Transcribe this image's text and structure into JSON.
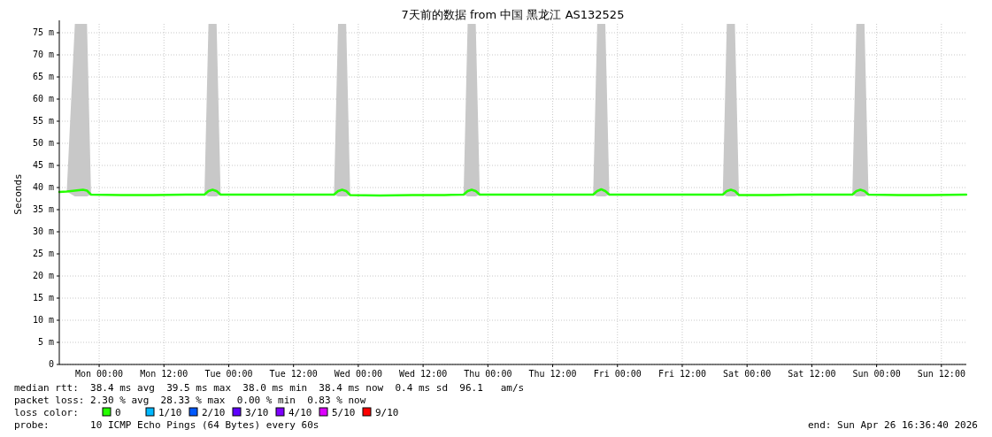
{
  "chart_data": {
    "type": "line",
    "title": "7天前的数据 from 中国 黑龙江 AS132525",
    "ylabel": "Seconds",
    "legend_title": "loss color:",
    "legend": "bottom",
    "grid": true,
    "line_style": "solid",
    "marker": "none",
    "xlim": [
      "2026-04-19T16:37",
      "2026-04-26T16:37"
    ],
    "xticks": [
      {
        "value": "2026-04-20T00:00",
        "label": "Mon 00:00"
      },
      {
        "value": "2026-04-20T12:00",
        "label": "Mon 12:00"
      },
      {
        "value": "2026-04-21T00:00",
        "label": "Tue 00:00"
      },
      {
        "value": "2026-04-21T12:00",
        "label": "Tue 12:00"
      },
      {
        "value": "2026-04-22T00:00",
        "label": "Wed 00:00"
      },
      {
        "value": "2026-04-22T12:00",
        "label": "Wed 12:00"
      },
      {
        "value": "2026-04-23T00:00",
        "label": "Thu 00:00"
      },
      {
        "value": "2026-04-23T12:00",
        "label": "Thu 12:00"
      },
      {
        "value": "2026-04-24T00:00",
        "label": "Fri 00:00"
      },
      {
        "value": "2026-04-24T12:00",
        "label": "Fri 12:00"
      },
      {
        "value": "2026-04-25T00:00",
        "label": "Sat 00:00"
      },
      {
        "value": "2026-04-25T12:00",
        "label": "Sat 12:00"
      },
      {
        "value": "2026-04-26T00:00",
        "label": "Sun 00:00"
      },
      {
        "value": "2026-04-26T12:00",
        "label": "Sun 12:00"
      }
    ],
    "ylim": [
      0,
      77
    ],
    "yticks": [
      0,
      {
        "value": 5,
        "label": "5 m"
      },
      {
        "value": 10,
        "label": "10 m"
      },
      {
        "value": 15,
        "label": "15 m"
      },
      {
        "value": 20,
        "label": "20 m"
      },
      {
        "value": 25,
        "label": "25 m"
      },
      {
        "value": 30,
        "label": "30 m"
      },
      {
        "value": 35,
        "label": "35 m"
      },
      {
        "value": 40,
        "label": "40 m"
      },
      {
        "value": 45,
        "label": "45 m"
      },
      {
        "value": 50,
        "label": "50 m"
      },
      {
        "value": 55,
        "label": "55 m"
      },
      {
        "value": 60,
        "label": "60 m"
      },
      {
        "value": 65,
        "label": "65 m"
      },
      {
        "value": 70,
        "label": "70 m"
      },
      {
        "value": 75,
        "label": "75 m"
      }
    ],
    "series": [
      {
        "name": "0",
        "color": "#26ff00",
        "x": [
          "2026-04-19T16:37",
          "2026-04-19T18:00",
          "2026-04-19T19:30",
          "2026-04-19T21:00",
          "2026-04-19T21:45",
          "2026-04-19T22:30",
          "2026-04-20T04:00",
          "2026-04-20T10:00",
          "2026-04-20T16:00",
          "2026-04-20T19:30",
          "2026-04-20T20:15",
          "2026-04-20T21:00",
          "2026-04-20T21:45",
          "2026-04-20T22:30",
          "2026-04-21T04:00",
          "2026-04-21T10:00",
          "2026-04-21T16:00",
          "2026-04-21T19:30",
          "2026-04-21T20:15",
          "2026-04-21T21:00",
          "2026-04-21T21:45",
          "2026-04-21T22:30",
          "2026-04-22T04:00",
          "2026-04-22T10:00",
          "2026-04-22T16:00",
          "2026-04-22T19:30",
          "2026-04-22T20:15",
          "2026-04-22T21:00",
          "2026-04-22T21:45",
          "2026-04-22T22:30",
          "2026-04-23T04:00",
          "2026-04-23T10:00",
          "2026-04-23T16:00",
          "2026-04-23T19:30",
          "2026-04-23T20:15",
          "2026-04-23T21:00",
          "2026-04-23T21:45",
          "2026-04-23T22:30",
          "2026-04-24T04:00",
          "2026-04-24T10:00",
          "2026-04-24T16:00",
          "2026-04-24T19:30",
          "2026-04-24T20:15",
          "2026-04-24T21:00",
          "2026-04-24T21:45",
          "2026-04-24T22:30",
          "2026-04-25T04:00",
          "2026-04-25T10:00",
          "2026-04-25T16:00",
          "2026-04-25T19:30",
          "2026-04-25T20:15",
          "2026-04-25T21:00",
          "2026-04-25T21:45",
          "2026-04-25T22:30",
          "2026-04-26T04:00",
          "2026-04-26T10:00",
          "2026-04-26T16:36"
        ],
        "values": [
          39.0,
          39.1,
          39.3,
          39.5,
          39.3,
          38.4,
          38.3,
          38.3,
          38.4,
          38.4,
          39.2,
          39.5,
          39.2,
          38.4,
          38.4,
          38.4,
          38.4,
          38.4,
          39.2,
          39.5,
          39.2,
          38.3,
          38.2,
          38.3,
          38.3,
          38.4,
          39.2,
          39.5,
          39.2,
          38.4,
          38.4,
          38.4,
          38.4,
          38.4,
          39.2,
          39.6,
          39.2,
          38.4,
          38.4,
          38.4,
          38.4,
          38.4,
          39.2,
          39.5,
          39.2,
          38.3,
          38.3,
          38.4,
          38.4,
          38.4,
          39.2,
          39.5,
          39.2,
          38.4,
          38.3,
          38.3,
          38.4
        ],
        "lower": [
          39.0,
          39.1,
          38.0,
          38.0,
          38.0,
          38.4,
          38.3,
          38.3,
          38.4,
          38.4,
          38.0,
          38.0,
          38.0,
          38.4,
          38.4,
          38.4,
          38.4,
          38.4,
          38.0,
          38.0,
          38.0,
          38.3,
          38.2,
          38.3,
          38.3,
          38.4,
          38.0,
          38.0,
          38.0,
          38.4,
          38.4,
          38.4,
          38.4,
          38.4,
          38.0,
          38.0,
          38.0,
          38.4,
          38.4,
          38.4,
          38.4,
          38.4,
          38.0,
          38.0,
          38.0,
          38.3,
          38.3,
          38.4,
          38.4,
          38.4,
          38.0,
          38.0,
          38.0,
          38.4,
          38.3,
          38.3,
          38.4
        ],
        "upper": [
          39.0,
          39.1,
          77,
          77,
          77,
          38.4,
          38.3,
          38.3,
          38.4,
          38.4,
          77,
          77,
          77,
          38.4,
          38.4,
          38.4,
          38.4,
          38.4,
          77,
          77,
          77,
          38.3,
          38.2,
          38.3,
          38.3,
          38.4,
          77,
          77,
          77,
          38.4,
          38.4,
          38.4,
          38.4,
          38.4,
          77,
          77,
          77,
          38.4,
          38.4,
          38.4,
          38.4,
          38.4,
          77,
          77,
          77,
          38.3,
          38.3,
          38.4,
          38.4,
          38.4,
          77,
          77,
          77,
          38.4,
          38.3,
          38.3,
          38.4
        ]
      },
      {
        "name": "1/10",
        "color": "#00b8ff"
      },
      {
        "name": "2/10",
        "color": "#0059ff"
      },
      {
        "name": "3/10",
        "color": "#5e00ff"
      },
      {
        "name": "4/10",
        "color": "#7e00ff"
      },
      {
        "name": "5/10",
        "color": "#dd00ff"
      },
      {
        "name": "9/10",
        "color": "#ff0000"
      }
    ],
    "annotations": [
      "median rtt:  38.4 ms avg  39.5 ms max  38.0 ms min  38.4 ms now  0.4 ms sd  96.1   am/s",
      "packet loss: 2.30 % avg  28.33 % max  0.00 % min  0.83 % now",
      "probe:       10 ICMP Echo Pings (64 Bytes) every 60s",
      "end: Sun Apr 26 16:36:40 2026"
    ]
  }
}
